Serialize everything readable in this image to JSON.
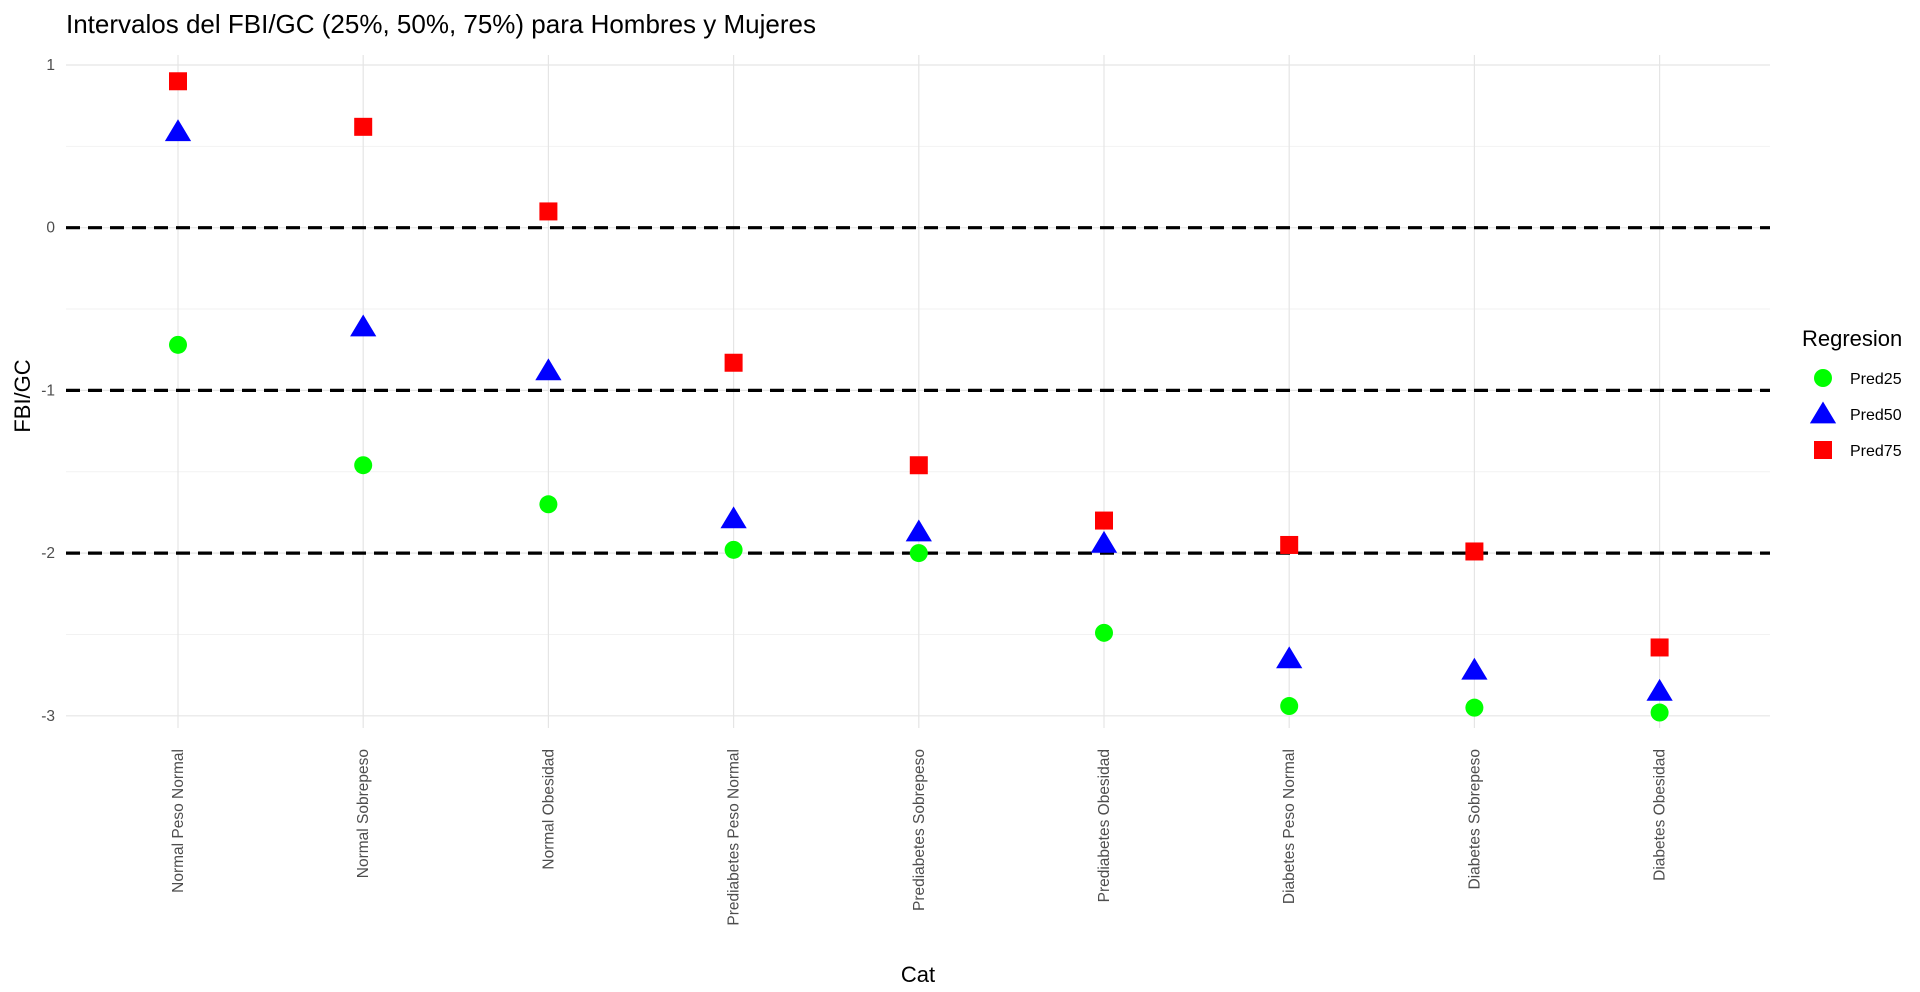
{
  "chart_data": {
    "type": "scatter",
    "title": "Intervalos del FBI/GC (25%, 50%, 75%) para Hombres y Mujeres",
    "xlabel": "Cat",
    "ylabel": "FBI/GC",
    "categories": [
      "Normal Peso Normal",
      "Normal Sobrepeso",
      "Normal Obesidad",
      "Prediabetes Peso Normal",
      "Prediabetes Sobrepeso",
      "Prediabetes Obesidad",
      "Diabetes Peso Normal",
      "Diabetes Sobrepeso",
      "Diabetes Obesidad"
    ],
    "ylim": [
      -3.1,
      1.05
    ],
    "yticks": [
      1,
      0,
      -1,
      -2,
      -3
    ],
    "ytick_labels": [
      "1",
      "0",
      "-1",
      "-2",
      "-3"
    ],
    "grid": true,
    "reference_lines": [
      0,
      -1,
      -2
    ],
    "legend": {
      "title": "Regresion",
      "placement": "right"
    },
    "series": [
      {
        "name": "Pred25",
        "shape": "circle",
        "color": "#00ff00",
        "values": [
          -0.72,
          -1.46,
          -1.7,
          -1.98,
          -2.0,
          -2.49,
          -2.94,
          -2.95,
          -2.98
        ]
      },
      {
        "name": "Pred50",
        "shape": "triangle",
        "color": "#0000ff",
        "values": [
          0.59,
          -0.61,
          -0.88,
          -1.79,
          -1.87,
          -1.94,
          -2.65,
          -2.72,
          -2.85
        ]
      },
      {
        "name": "Pred75",
        "shape": "square",
        "color": "#ff0000",
        "values": [
          0.9,
          0.62,
          0.1,
          -0.83,
          -1.46,
          -1.8,
          -1.95,
          -1.99,
          -2.58
        ]
      }
    ]
  }
}
